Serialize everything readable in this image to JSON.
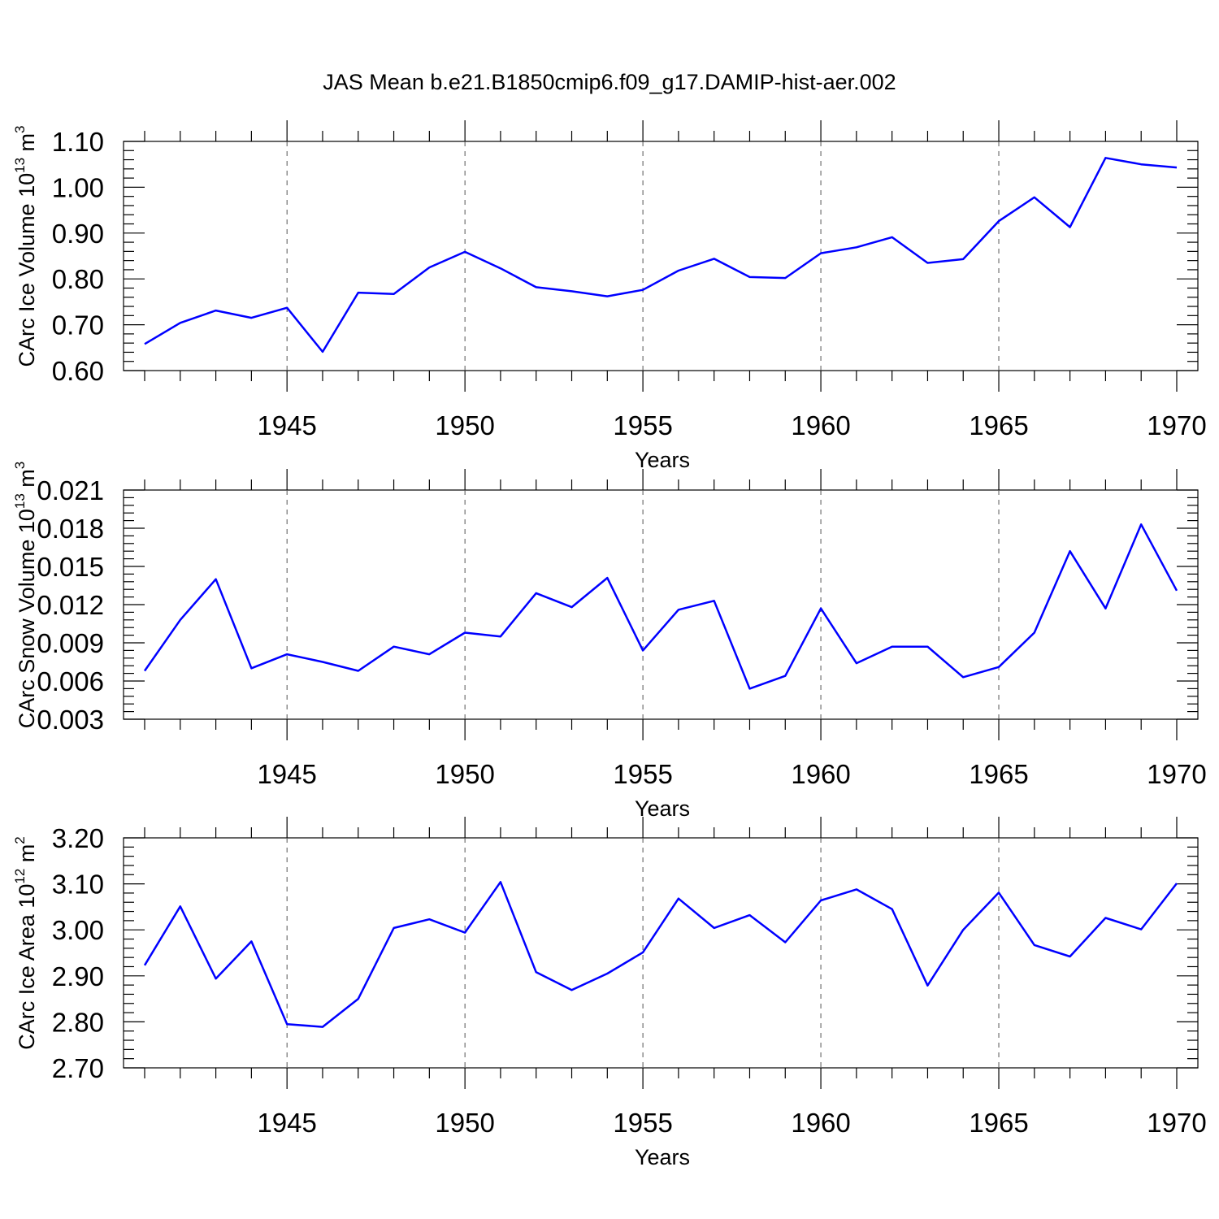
{
  "title": "JAS Mean b.e21.B1850cmip6.f09_g17.DAMIP-hist-aer.002",
  "chart_data": [
    {
      "type": "line",
      "xlabel": "Years",
      "ylabel": {
        "base": "CArc Ice Volume 10",
        "exp": "13",
        "unit": " m",
        "unit_exp": "3"
      },
      "xlim": [
        1941,
        1970
      ],
      "ylim": [
        0.6,
        1.1
      ],
      "yticks": [
        "0.60",
        "0.70",
        "0.80",
        "0.90",
        "1.00",
        "1.10"
      ],
      "xticks": [
        "1945",
        "1950",
        "1955",
        "1960",
        "1965",
        "1970"
      ],
      "grid": "vertical dashed at major x ticks",
      "color": "#0000ff",
      "x": [
        1941,
        1942,
        1943,
        1944,
        1945,
        1946,
        1947,
        1948,
        1949,
        1950,
        1951,
        1952,
        1953,
        1954,
        1955,
        1956,
        1957,
        1958,
        1959,
        1960,
        1961,
        1962,
        1963,
        1964,
        1965,
        1966,
        1967,
        1968,
        1969,
        1970
      ],
      "values": [
        0.658,
        0.704,
        0.731,
        0.715,
        0.737,
        0.641,
        0.77,
        0.767,
        0.825,
        0.859,
        0.823,
        0.782,
        0.773,
        0.762,
        0.776,
        0.818,
        0.844,
        0.804,
        0.802,
        0.856,
        0.869,
        0.891,
        0.835,
        0.843,
        0.926,
        0.978,
        0.913,
        1.064,
        1.05,
        1.043
      ]
    },
    {
      "type": "line",
      "xlabel": "Years",
      "ylabel": {
        "base": "CArc Snow Volume 10",
        "exp": "13",
        "unit": " m",
        "unit_exp": "3"
      },
      "xlim": [
        1941,
        1970
      ],
      "ylim": [
        0.003,
        0.021
      ],
      "yticks": [
        "0.003",
        "0.006",
        "0.009",
        "0.012",
        "0.015",
        "0.018",
        "0.021"
      ],
      "xticks": [
        "1945",
        "1950",
        "1955",
        "1960",
        "1965",
        "1970"
      ],
      "grid": "vertical dashed at major x ticks",
      "color": "#0000ff",
      "x": [
        1941,
        1942,
        1943,
        1944,
        1945,
        1946,
        1947,
        1948,
        1949,
        1950,
        1951,
        1952,
        1953,
        1954,
        1955,
        1956,
        1957,
        1958,
        1959,
        1960,
        1961,
        1962,
        1963,
        1964,
        1965,
        1966,
        1967,
        1968,
        1969,
        1970
      ],
      "values": [
        0.0068,
        0.0108,
        0.014,
        0.007,
        0.0081,
        0.0075,
        0.0068,
        0.0087,
        0.0081,
        0.0098,
        0.0095,
        0.0129,
        0.0118,
        0.0141,
        0.0084,
        0.0116,
        0.0123,
        0.0054,
        0.0064,
        0.0117,
        0.0074,
        0.0087,
        0.0087,
        0.0063,
        0.0071,
        0.0098,
        0.0162,
        0.0117,
        0.0183,
        0.0131
      ]
    },
    {
      "type": "line",
      "xlabel": "Years",
      "ylabel": {
        "base": "CArc Ice Area 10",
        "exp": "12",
        "unit": " m",
        "unit_exp": "2"
      },
      "xlim": [
        1941,
        1970
      ],
      "ylim": [
        2.7,
        3.2
      ],
      "yticks": [
        "2.70",
        "2.80",
        "2.90",
        "3.00",
        "3.10",
        "3.20"
      ],
      "xticks": [
        "1945",
        "1950",
        "1955",
        "1960",
        "1965",
        "1970"
      ],
      "grid": "vertical dashed at major x ticks",
      "color": "#0000ff",
      "x": [
        1941,
        1942,
        1943,
        1944,
        1945,
        1946,
        1947,
        1948,
        1949,
        1950,
        1951,
        1952,
        1953,
        1954,
        1955,
        1956,
        1957,
        1958,
        1959,
        1960,
        1961,
        1962,
        1963,
        1964,
        1965,
        1966,
        1967,
        1968,
        1969,
        1970
      ],
      "values": [
        2.923,
        3.051,
        2.894,
        2.975,
        2.795,
        2.789,
        2.85,
        3.004,
        3.023,
        2.994,
        3.104,
        2.908,
        2.869,
        2.905,
        2.951,
        3.068,
        3.004,
        3.032,
        2.973,
        3.064,
        3.088,
        3.045,
        2.879,
        3.0,
        3.081,
        2.967,
        2.942,
        3.026,
        3.001,
        3.101
      ]
    }
  ]
}
